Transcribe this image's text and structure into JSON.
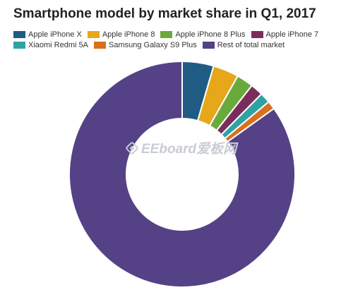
{
  "chart_data": {
    "type": "pie",
    "title": "Smartphone model by market share in Q1, 2017",
    "legend_position": "top",
    "categories": [
      "Apple iPhone X",
      "Apple iPhone 8",
      "Apple iPhone 8 Plus",
      "Apple iPhone 7",
      "Xiaomi Redmi 5A",
      "Samsung Galaxy S9 Plus",
      "Rest of total market"
    ],
    "values": [
      4.5,
      3.7,
      2.4,
      1.8,
      1.5,
      1.2,
      84.9
    ],
    "colors": [
      "#1f5b82",
      "#e7a71a",
      "#6aaa3c",
      "#7a2d5c",
      "#2fa3a3",
      "#d9701e",
      "#554186"
    ],
    "donut": true
  },
  "watermark": {
    "text": "EEboard爱板网",
    "icon": "eeboard-logo-icon"
  }
}
